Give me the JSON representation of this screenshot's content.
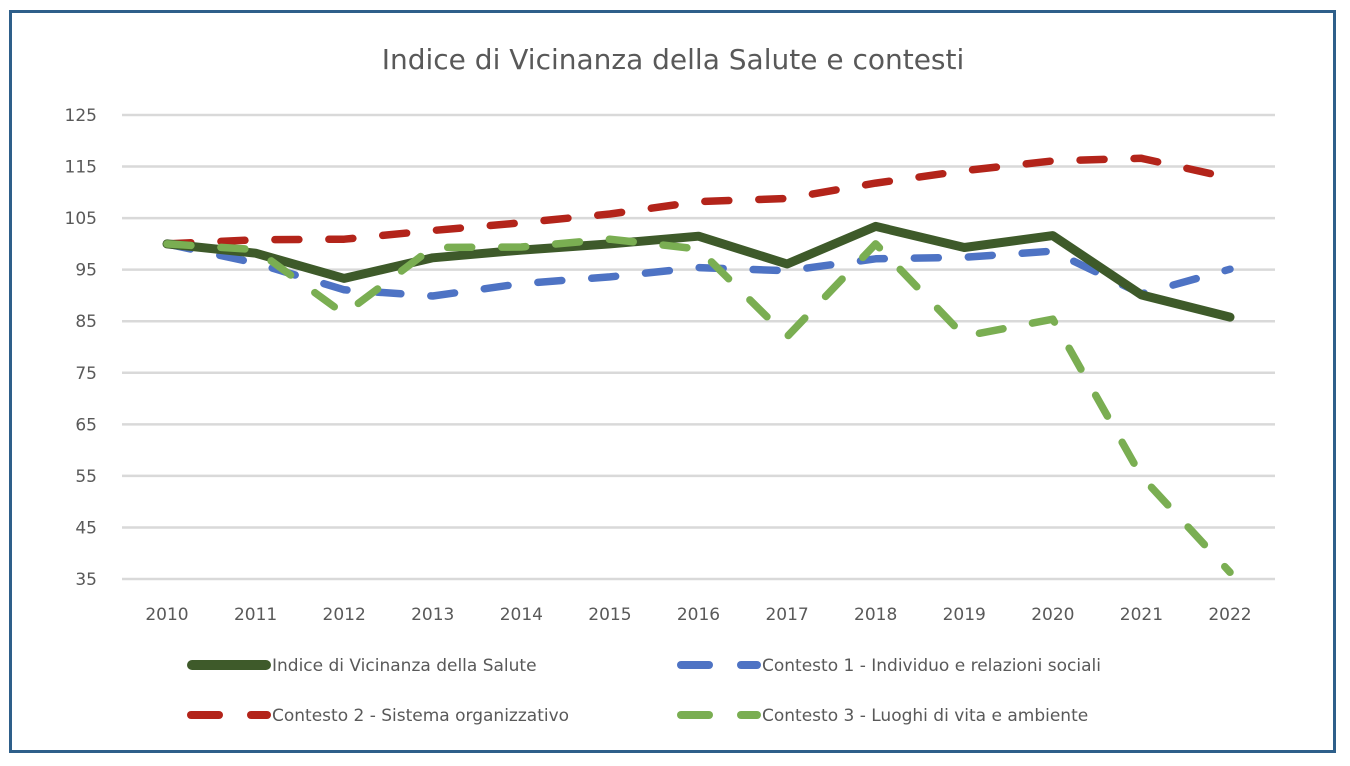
{
  "chart_data": {
    "type": "line",
    "title": "Indice di Vicinanza della Salute e contesti",
    "xlabel": "",
    "ylabel": "",
    "categories": [
      "2010",
      "2011",
      "2012",
      "2013",
      "2014",
      "2015",
      "2016",
      "2017",
      "2018",
      "2019",
      "2020",
      "2021",
      "2022"
    ],
    "ylim": [
      35,
      125
    ],
    "yticks": [
      "125",
      "115",
      "105",
      "95",
      "85",
      "75",
      "65",
      "55",
      "45",
      "35"
    ],
    "grid": true,
    "legend_position": "bottom",
    "series": [
      {
        "name": "Indice di Vicinanza della Salute",
        "color": "#3E5A2A",
        "style": "solid",
        "values": [
          100,
          98.2,
          93.3,
          97.3,
          98.8,
          100,
          101.5,
          96.1,
          103.4,
          99.3,
          101.6,
          90.1,
          85.8
        ]
      },
      {
        "name": "Contesto 1 - Individuo e relazioni sociali",
        "color": "#4E73C4",
        "style": "dashed",
        "values": [
          100,
          96.3,
          91.1,
          89.9,
          92.3,
          93.6,
          95.4,
          94.8,
          97.1,
          97.4,
          98.6,
          90.3,
          95.1
        ]
      },
      {
        "name": "Contesto 2 - Sistema organizzativo",
        "color": "#B3241A",
        "style": "dashed",
        "values": [
          100,
          100.8,
          100.9,
          102.6,
          104.1,
          105.8,
          108.2,
          108.8,
          111.8,
          114.2,
          116.1,
          116.6,
          112.8
        ]
      },
      {
        "name": "Contesto 3 - Luoghi di vita e ambiente",
        "color": "#7AAE52",
        "style": "dashed",
        "values": [
          100,
          98.9,
          86.4,
          99.3,
          99.4,
          100.9,
          99.0,
          82.0,
          100.0,
          82.1,
          85.4,
          54.9,
          36.3
        ]
      }
    ],
    "legend": [
      "Indice di Vicinanza della Salute",
      "Contesto 1 - Individuo e relazioni sociali",
      "Contesto 2 - Sistema organizzativo",
      "Contesto 3 - Luoghi di vita e ambiente"
    ]
  },
  "colors": {
    "frame_border": "#2E5F8A",
    "gridline": "#D9D9D9",
    "text": "#595959"
  }
}
